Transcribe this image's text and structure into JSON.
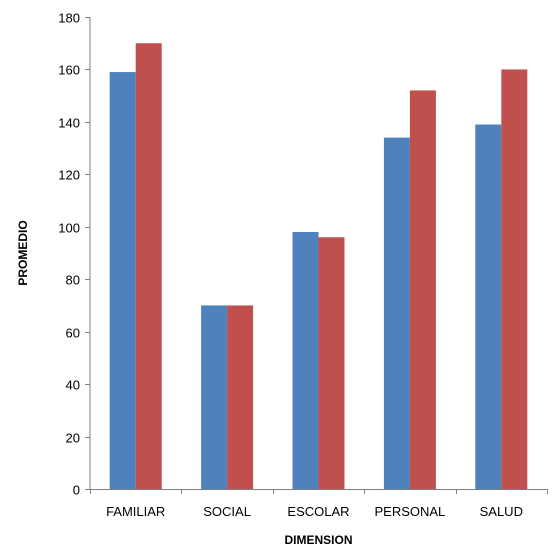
{
  "chart_data": {
    "type": "bar",
    "title": "",
    "xlabel": "DIMENSION",
    "ylabel": "PROMEDIO",
    "categories": [
      "FAMILIAR",
      "SOCIAL",
      "ESCOLAR",
      "PERSONAL",
      "SALUD"
    ],
    "series": [
      {
        "values": [
          159,
          70,
          98,
          134,
          139
        ],
        "color": "#4f81bd"
      },
      {
        "values": [
          170,
          70,
          96,
          152,
          160
        ],
        "color": "#c0504d"
      }
    ],
    "ylim": [
      0,
      180
    ],
    "yticks": [
      0,
      20,
      40,
      60,
      80,
      100,
      120,
      140,
      160,
      180
    ],
    "grid": false,
    "legend": "none"
  }
}
